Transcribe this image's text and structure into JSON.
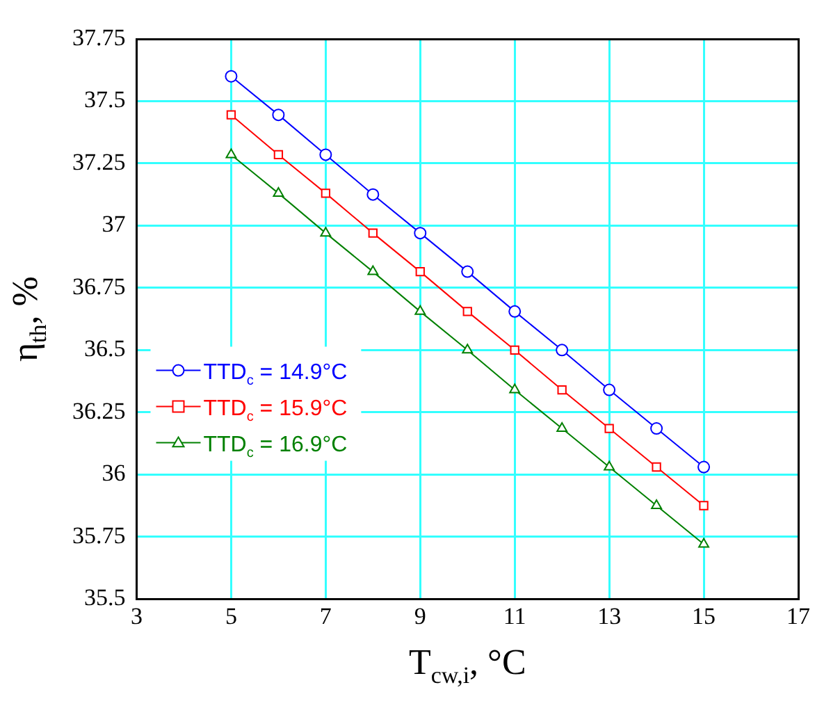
{
  "chart_data": {
    "type": "line",
    "xlabel": "T$_{cw,i}$, °C",
    "ylabel": "η$_{th}$, %",
    "x": [
      5,
      6,
      7,
      8,
      9,
      10,
      11,
      12,
      13,
      14,
      15
    ],
    "series": [
      {
        "name": "TTD$_{c}$ = 14.9°C",
        "color": "#0000ff",
        "marker": "circle",
        "values": [
          37.6,
          37.445,
          37.285,
          37.125,
          36.97,
          36.815,
          36.655,
          36.5,
          36.34,
          36.185,
          36.03
        ]
      },
      {
        "name": "TTD$_{c}$ = 15.9°C",
        "color": "#ff0000",
        "marker": "square",
        "values": [
          37.445,
          37.285,
          37.13,
          36.97,
          36.815,
          36.655,
          36.5,
          36.34,
          36.185,
          36.03,
          35.875
        ]
      },
      {
        "name": "TTD$_{c}$ = 16.9°C",
        "color": "#008000",
        "marker": "triangle",
        "values": [
          37.285,
          37.13,
          36.97,
          36.815,
          36.655,
          36.5,
          36.34,
          36.185,
          36.03,
          35.875,
          35.72
        ]
      }
    ],
    "xlim": [
      3,
      17
    ],
    "xticks": [
      3,
      5,
      7,
      9,
      11,
      13,
      15,
      17
    ],
    "ylim": [
      35.5,
      37.75
    ],
    "yticks": [
      35.5,
      35.75,
      36,
      36.25,
      36.5,
      36.75,
      37,
      37.25,
      37.5,
      37.75
    ],
    "grid": true,
    "legend": "left",
    "line_style": "solid"
  }
}
